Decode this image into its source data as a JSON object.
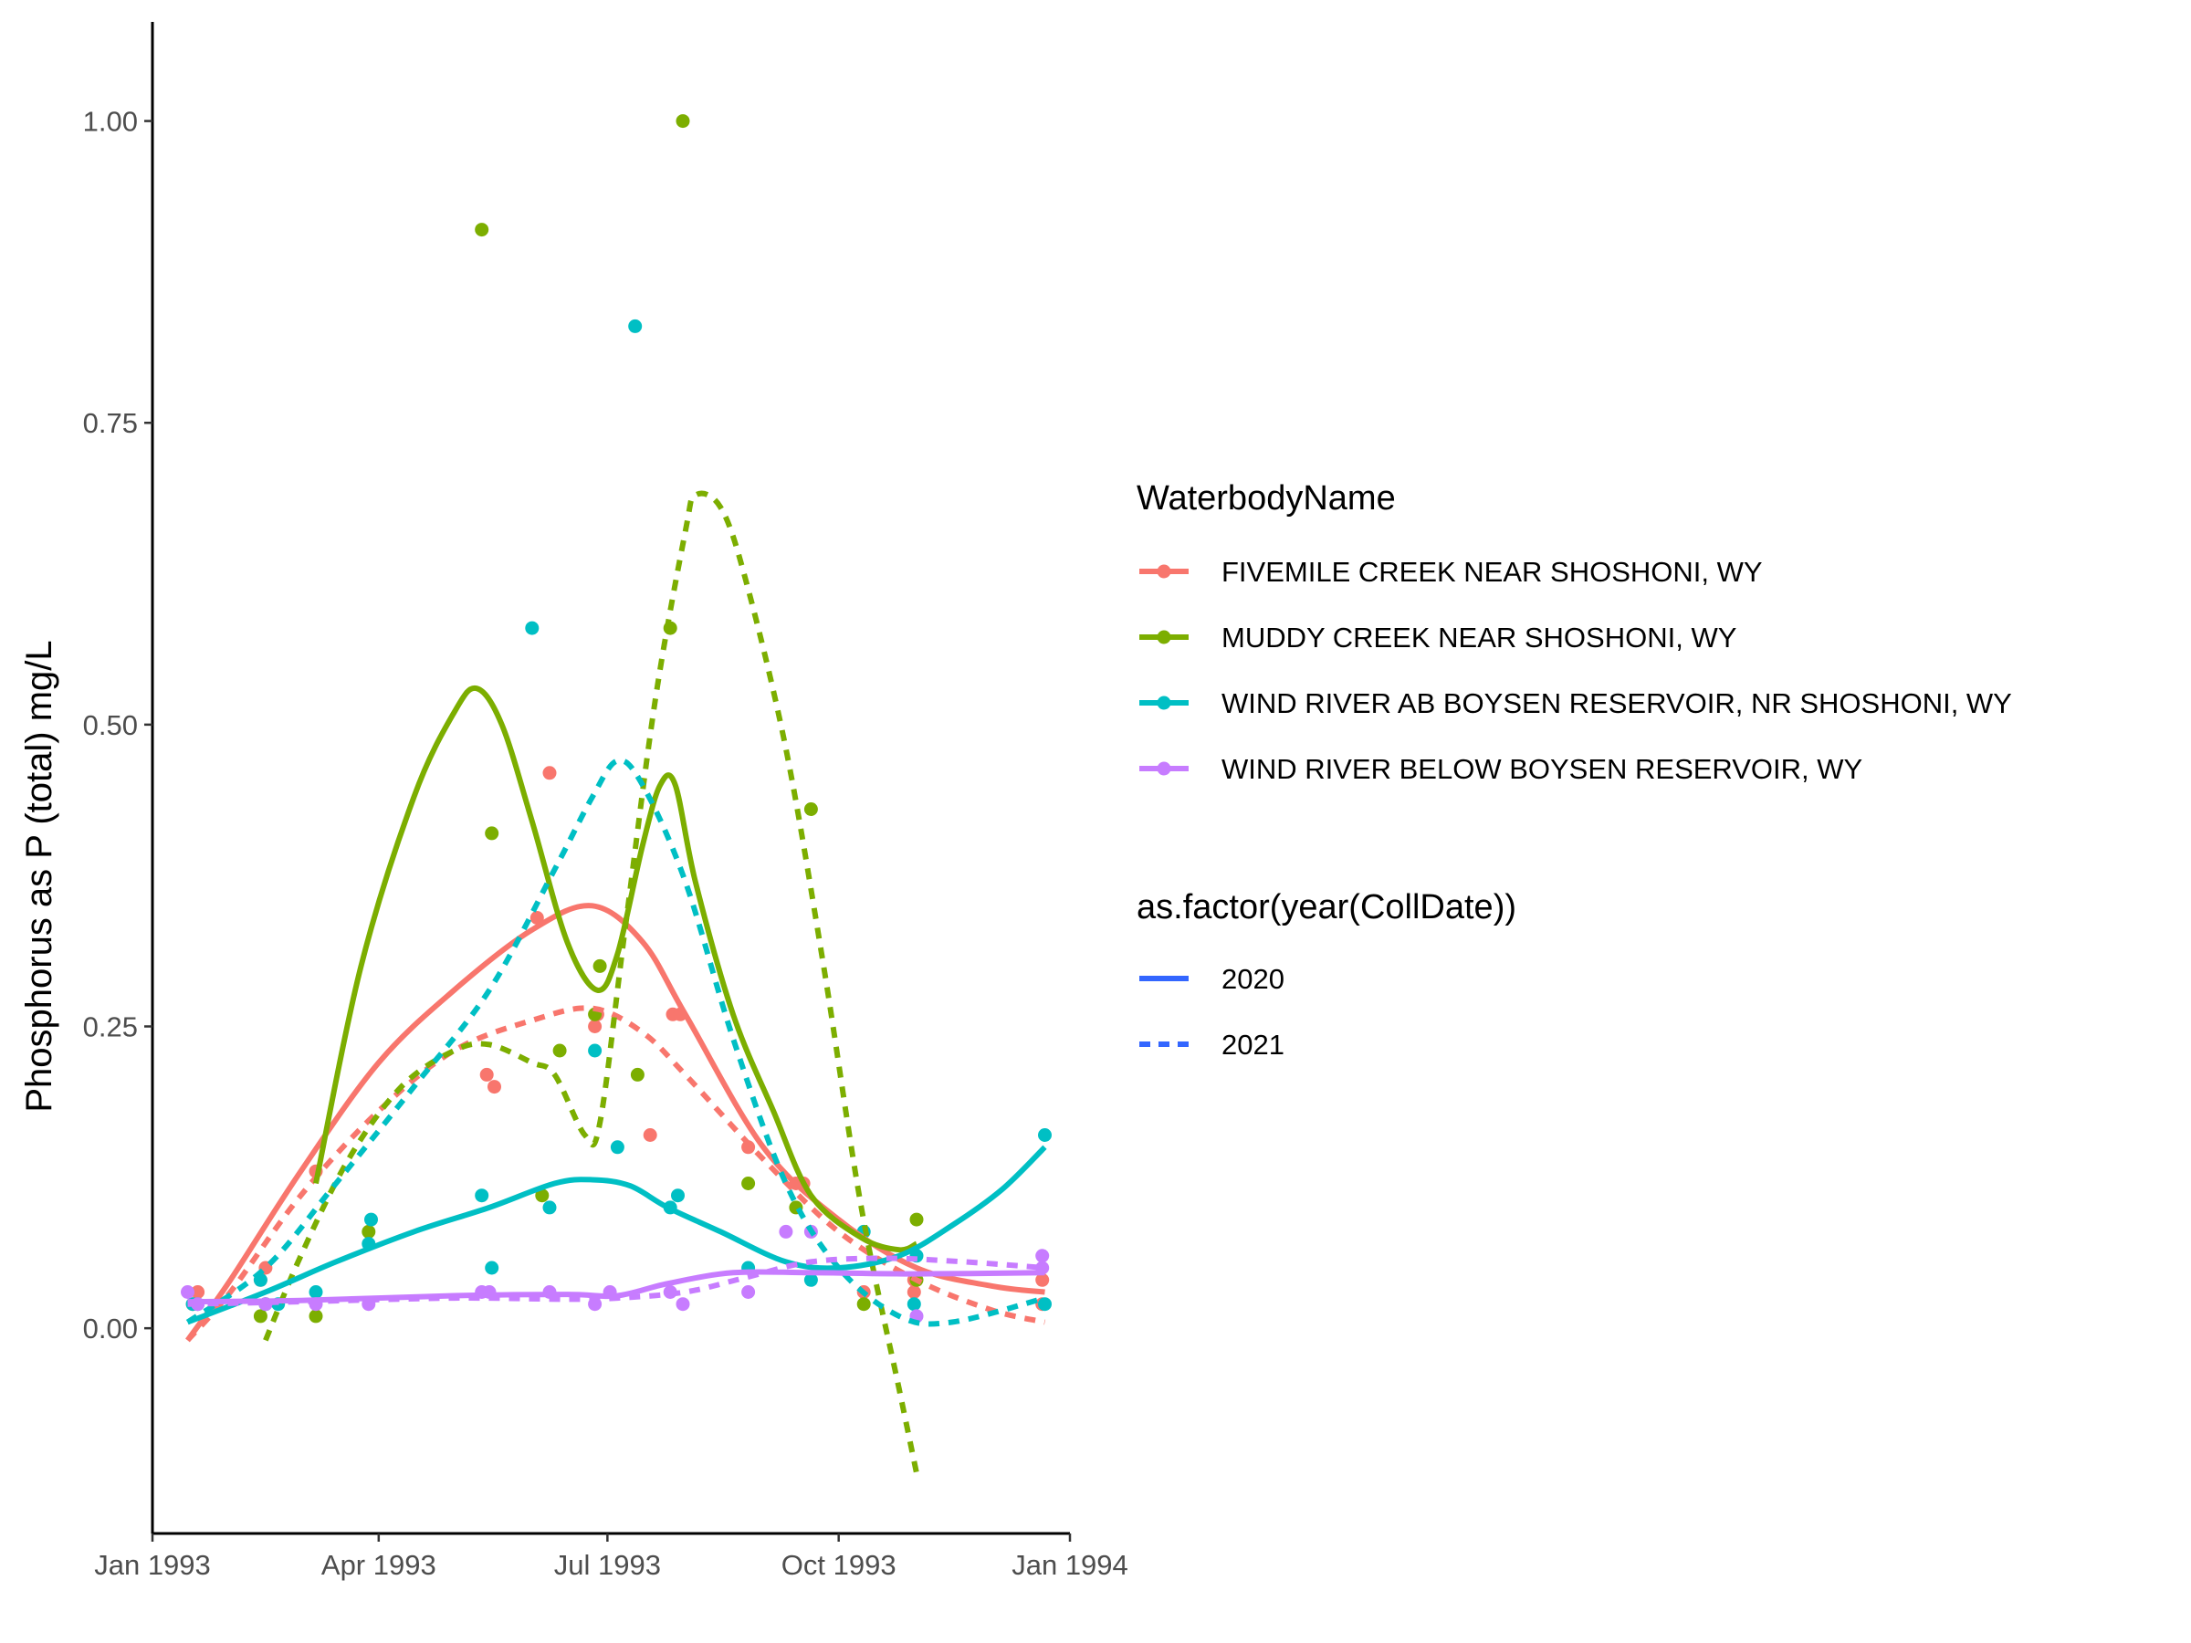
{
  "chart_data": {
    "type": "scatter",
    "xlabel": "",
    "ylabel": "Phosphorus as P (total) mg/L",
    "xlim": [
      "1993-01-01",
      "1994-01-01"
    ],
    "ylim": [
      -0.17,
      1.07
    ],
    "x_ticks": [
      {
        "date": "1993-01-01",
        "label": "Jan 1993"
      },
      {
        "date": "1993-04-01",
        "label": "Apr 1993"
      },
      {
        "date": "1993-07-01",
        "label": "Jul 1993"
      },
      {
        "date": "1993-10-01",
        "label": "Oct 1993"
      },
      {
        "date": "1994-01-01",
        "label": "Jan 1994"
      }
    ],
    "y_ticks": [
      {
        "value": 0.0,
        "label": "0.00"
      },
      {
        "value": 0.25,
        "label": "0.25"
      },
      {
        "value": 0.5,
        "label": "0.50"
      },
      {
        "value": 0.75,
        "label": "0.75"
      },
      {
        "value": 1.0,
        "label": "1.00"
      }
    ],
    "grid": false,
    "legend_position": "right",
    "legends": [
      {
        "title": "WaterbodyName",
        "entries": [
          {
            "label": "FIVEMILE CREEK NEAR SHOSHONI, WY",
            "color": "#F8766D"
          },
          {
            "label": "MUDDY CREEK NEAR SHOSHONI, WY",
            "color": "#7CAE00"
          },
          {
            "label": "WIND RIVER AB BOYSEN RESERVOIR, NR SHOSHONI, WY",
            "color": "#00BFC4"
          },
          {
            "label": "WIND RIVER BELOW BOYSEN RESERVOIR, WY",
            "color": "#C77CFF"
          }
        ]
      },
      {
        "title": "as.factor(year(CollDate))",
        "entries": [
          {
            "label": "2020",
            "linetype": "solid",
            "color": "#3366FF"
          },
          {
            "label": "2021",
            "linetype": "dashed",
            "color": "#3366FF"
          }
        ]
      }
    ],
    "series": [
      {
        "waterbody": "FIVEMILE CREEK NEAR SHOSHONI, WY",
        "color": "#F8766D",
        "points": [
          [
            "1993-01-17",
            0.02
          ],
          [
            "1993-01-19",
            0.03
          ],
          [
            "1993-02-13",
            0.04
          ],
          [
            "1993-02-15",
            0.05
          ],
          [
            "1993-03-07",
            0.13
          ],
          [
            "1993-05-14",
            0.21
          ],
          [
            "1993-05-17",
            0.2
          ],
          [
            "1993-06-03",
            0.34
          ],
          [
            "1993-06-08",
            0.46
          ],
          [
            "1993-06-26",
            0.25
          ],
          [
            "1993-06-27",
            0.26
          ],
          [
            "1993-07-18",
            0.16
          ],
          [
            "1993-07-27",
            0.26
          ],
          [
            "1993-07-30",
            0.26
          ],
          [
            "1993-08-26",
            0.15
          ],
          [
            "1993-09-14",
            0.12
          ],
          [
            "1993-09-17",
            0.12
          ],
          [
            "1993-10-11",
            0.03
          ],
          [
            "1993-10-31",
            0.04
          ],
          [
            "1993-10-31",
            0.03
          ],
          [
            "1993-12-21",
            0.04
          ],
          [
            "1993-12-21",
            0.02
          ]
        ],
        "fits": {
          "2020": [
            [
              "1993-01-15",
              -0.01
            ],
            [
              "1993-02-01",
              0.04
            ],
            [
              "1993-03-01",
              0.13
            ],
            [
              "1993-04-01",
              0.22
            ],
            [
              "1993-05-01",
              0.28
            ],
            [
              "1993-06-01",
              0.33
            ],
            [
              "1993-06-25",
              0.35
            ],
            [
              "1993-07-15",
              0.32
            ],
            [
              "1993-08-01",
              0.26
            ],
            [
              "1993-09-01",
              0.15
            ],
            [
              "1993-10-01",
              0.09
            ],
            [
              "1993-11-01",
              0.05
            ],
            [
              "1993-12-01",
              0.035
            ],
            [
              "1993-12-22",
              0.03
            ]
          ],
          "2021": [
            [
              "1993-01-15",
              -0.01
            ],
            [
              "1993-02-01",
              0.03
            ],
            [
              "1993-03-01",
              0.11
            ],
            [
              "1993-04-01",
              0.18
            ],
            [
              "1993-05-01",
              0.23
            ],
            [
              "1993-06-01",
              0.255
            ],
            [
              "1993-06-25",
              0.265
            ],
            [
              "1993-07-15",
              0.245
            ],
            [
              "1993-08-01",
              0.21
            ],
            [
              "1993-09-01",
              0.14
            ],
            [
              "1993-10-01",
              0.08
            ],
            [
              "1993-11-01",
              0.04
            ],
            [
              "1993-12-01",
              0.015
            ],
            [
              "1993-12-22",
              0.005
            ]
          ]
        }
      },
      {
        "waterbody": "MUDDY CREEK NEAR SHOSHONI, WY",
        "color": "#7CAE00",
        "points": [
          [
            "1993-02-13",
            0.01
          ],
          [
            "1993-02-15",
            0.02
          ],
          [
            "1993-03-07",
            0.01
          ],
          [
            "1993-03-28",
            0.08
          ],
          [
            "1993-05-12",
            0.91
          ],
          [
            "1993-05-16",
            0.41
          ],
          [
            "1993-06-05",
            0.11
          ],
          [
            "1993-06-12",
            0.23
          ],
          [
            "1993-06-26",
            0.26
          ],
          [
            "1993-06-28",
            0.3
          ],
          [
            "1993-07-13",
            0.21
          ],
          [
            "1993-07-26",
            0.58
          ],
          [
            "1993-07-31",
            1.0
          ],
          [
            "1993-08-26",
            0.12
          ],
          [
            "1993-09-14",
            0.1
          ],
          [
            "1993-09-20",
            0.43
          ],
          [
            "1993-10-11",
            0.02
          ],
          [
            "1993-11-01",
            0.09
          ],
          [
            "1993-11-01",
            0.04
          ]
        ],
        "fits": {
          "2020": [
            [
              "1993-03-07",
              0.12
            ],
            [
              "1993-03-25",
              0.3
            ],
            [
              "1993-04-15",
              0.44
            ],
            [
              "1993-05-01",
              0.51
            ],
            [
              "1993-05-10",
              0.53
            ],
            [
              "1993-05-20",
              0.5
            ],
            [
              "1993-06-01",
              0.42
            ],
            [
              "1993-06-15",
              0.32
            ],
            [
              "1993-06-27",
              0.28
            ],
            [
              "1993-07-05",
              0.31
            ],
            [
              "1993-07-15",
              0.4
            ],
            [
              "1993-07-22",
              0.45
            ],
            [
              "1993-07-28",
              0.45
            ],
            [
              "1993-08-05",
              0.37
            ],
            [
              "1993-08-20",
              0.26
            ],
            [
              "1993-09-05",
              0.18
            ],
            [
              "1993-09-20",
              0.11
            ],
            [
              "1993-10-10",
              0.075
            ],
            [
              "1993-10-25",
              0.065
            ],
            [
              "1993-11-01",
              0.07
            ]
          ],
          "2021": [
            [
              "1993-02-15",
              -0.01
            ],
            [
              "1993-03-01",
              0.06
            ],
            [
              "1993-03-20",
              0.14
            ],
            [
              "1993-04-10",
              0.2
            ],
            [
              "1993-05-01",
              0.23
            ],
            [
              "1993-05-15",
              0.235
            ],
            [
              "1993-06-01",
              0.22
            ],
            [
              "1993-06-10",
              0.21
            ],
            [
              "1993-06-22",
              0.16
            ],
            [
              "1993-06-28",
              0.17
            ],
            [
              "1993-07-08",
              0.33
            ],
            [
              "1993-07-20",
              0.52
            ],
            [
              "1993-08-01",
              0.66
            ],
            [
              "1993-08-05",
              0.69
            ],
            [
              "1993-08-15",
              0.68
            ],
            [
              "1993-08-25",
              0.62
            ],
            [
              "1993-09-10",
              0.48
            ],
            [
              "1993-09-25",
              0.3
            ],
            [
              "1993-10-10",
              0.1
            ],
            [
              "1993-10-25",
              -0.05
            ],
            [
              "1993-11-01",
              -0.12
            ]
          ]
        }
      },
      {
        "waterbody": "WIND RIVER AB BOYSEN RESERVOIR, NR SHOSHONI, WY",
        "color": "#00BFC4",
        "points": [
          [
            "1993-01-17",
            0.02
          ],
          [
            "1993-01-19",
            0.02
          ],
          [
            "1993-02-13",
            0.04
          ],
          [
            "1993-02-15",
            0.02
          ],
          [
            "1993-02-20",
            0.02
          ],
          [
            "1993-03-07",
            0.03
          ],
          [
            "1993-03-28",
            0.07
          ],
          [
            "1993-03-29",
            0.09
          ],
          [
            "1993-05-12",
            0.11
          ],
          [
            "1993-05-16",
            0.05
          ],
          [
            "1993-06-01",
            0.58
          ],
          [
            "1993-06-08",
            0.1
          ],
          [
            "1993-06-26",
            0.23
          ],
          [
            "1993-07-05",
            0.15
          ],
          [
            "1993-07-12",
            0.83
          ],
          [
            "1993-07-26",
            0.1
          ],
          [
            "1993-07-29",
            0.11
          ],
          [
            "1993-08-26",
            0.05
          ],
          [
            "1993-09-20",
            0.04
          ],
          [
            "1993-10-11",
            0.08
          ],
          [
            "1993-10-31",
            0.02
          ],
          [
            "1993-11-01",
            0.06
          ],
          [
            "1993-12-22",
            0.16
          ],
          [
            "1993-12-22",
            0.02
          ]
        ],
        "fits": {
          "2020": [
            [
              "1993-01-15",
              0.005
            ],
            [
              "1993-02-15",
              0.03
            ],
            [
              "1993-03-15",
              0.055
            ],
            [
              "1993-04-15",
              0.08
            ],
            [
              "1993-05-15",
              0.1
            ],
            [
              "1993-06-10",
              0.12
            ],
            [
              "1993-06-25",
              0.123
            ],
            [
              "1993-07-10",
              0.118
            ],
            [
              "1993-07-25",
              0.1
            ],
            [
              "1993-08-15",
              0.08
            ],
            [
              "1993-09-10",
              0.055
            ],
            [
              "1993-10-01",
              0.05
            ],
            [
              "1993-10-25",
              0.06
            ],
            [
              "1993-11-15",
              0.085
            ],
            [
              "1993-12-05",
              0.115
            ],
            [
              "1993-12-22",
              0.15
            ]
          ],
          "2021": [
            [
              "1993-01-15",
              0.005
            ],
            [
              "1993-02-15",
              0.05
            ],
            [
              "1993-03-15",
              0.12
            ],
            [
              "1993-04-15",
              0.2
            ],
            [
              "1993-05-15",
              0.28
            ],
            [
              "1993-06-10",
              0.38
            ],
            [
              "1993-06-25",
              0.44
            ],
            [
              "1993-07-05",
              0.47
            ],
            [
              "1993-07-15",
              0.45
            ],
            [
              "1993-08-01",
              0.37
            ],
            [
              "1993-08-20",
              0.24
            ],
            [
              "1993-09-10",
              0.12
            ],
            [
              "1993-10-01",
              0.05
            ],
            [
              "1993-10-25",
              0.01
            ],
            [
              "1993-11-15",
              0.005
            ],
            [
              "1993-12-22",
              0.025
            ]
          ]
        }
      },
      {
        "waterbody": "WIND RIVER BELOW BOYSEN RESERVOIR, WY",
        "color": "#C77CFF",
        "points": [
          [
            "1993-01-15",
            0.03
          ],
          [
            "1993-01-19",
            0.02
          ],
          [
            "1993-02-15",
            0.02
          ],
          [
            "1993-03-07",
            0.02
          ],
          [
            "1993-03-28",
            0.02
          ],
          [
            "1993-05-12",
            0.03
          ],
          [
            "1993-05-15",
            0.03
          ],
          [
            "1993-06-08",
            0.03
          ],
          [
            "1993-06-26",
            0.02
          ],
          [
            "1993-07-02",
            0.03
          ],
          [
            "1993-07-26",
            0.03
          ],
          [
            "1993-07-31",
            0.02
          ],
          [
            "1993-08-26",
            0.03
          ],
          [
            "1993-09-10",
            0.08
          ],
          [
            "1993-09-20",
            0.08
          ],
          [
            "1993-11-01",
            0.01
          ],
          [
            "1993-12-21",
            0.06
          ],
          [
            "1993-12-21",
            0.05
          ]
        ],
        "fits": {
          "2020": [
            [
              "1993-01-15",
              0.022
            ],
            [
              "1993-03-01",
              0.023
            ],
            [
              "1993-05-01",
              0.027
            ],
            [
              "1993-06-15",
              0.028
            ],
            [
              "1993-07-05",
              0.027
            ],
            [
              "1993-07-25",
              0.037
            ],
            [
              "1993-08-20",
              0.046
            ],
            [
              "1993-09-20",
              0.046
            ],
            [
              "1993-11-01",
              0.045
            ],
            [
              "1993-12-22",
              0.046
            ]
          ],
          "2021": [
            [
              "1993-01-15",
              0.02
            ],
            [
              "1993-03-01",
              0.022
            ],
            [
              "1993-05-01",
              0.025
            ],
            [
              "1993-06-15",
              0.024
            ],
            [
              "1993-07-05",
              0.025
            ],
            [
              "1993-08-01",
              0.03
            ],
            [
              "1993-08-25",
              0.042
            ],
            [
              "1993-09-20",
              0.055
            ],
            [
              "1993-10-20",
              0.058
            ],
            [
              "1993-11-20",
              0.055
            ],
            [
              "1993-12-22",
              0.05
            ]
          ]
        }
      }
    ]
  }
}
